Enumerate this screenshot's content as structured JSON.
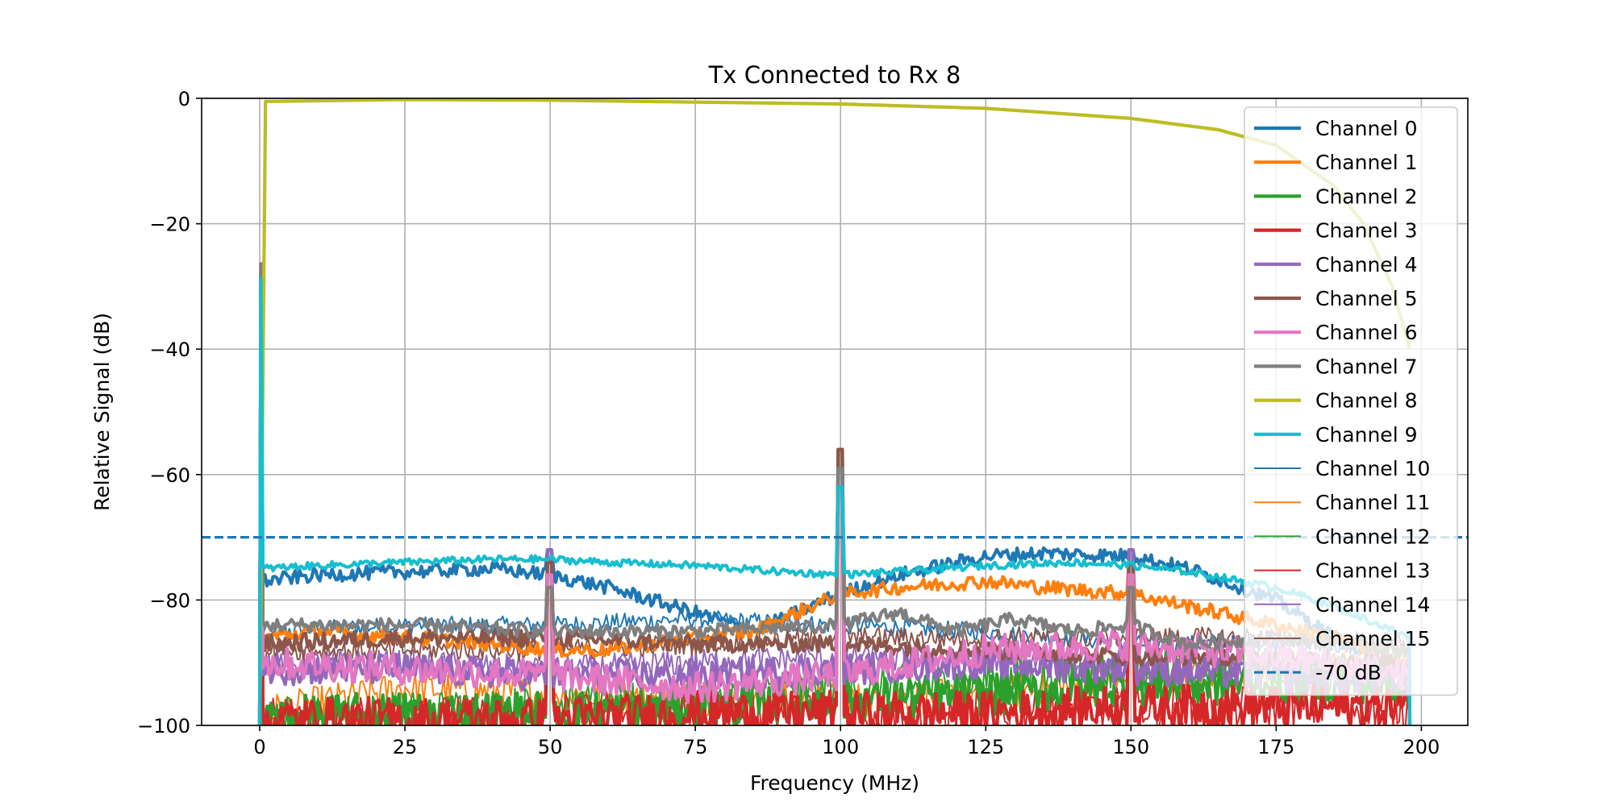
{
  "colors": {
    "grid": "#b0b0b0",
    "axis": "#000000",
    "legend_border": "#cccccc",
    "legend_bg": "#ffffff"
  },
  "chart_data": {
    "type": "line",
    "title": "Tx Connected to Rx 8",
    "xlabel": "Frequency (MHz)",
    "ylabel": "Relative Signal (dB)",
    "xlim": [
      -10,
      208
    ],
    "ylim": [
      -100,
      0
    ],
    "xticks": [
      0,
      25,
      50,
      75,
      100,
      125,
      150,
      175,
      200
    ],
    "yticks": [
      0,
      -20,
      -40,
      -60,
      -80,
      -100
    ],
    "xtick_labels": [
      "0",
      "25",
      "50",
      "75",
      "100",
      "125",
      "150",
      "175",
      "200"
    ],
    "ytick_labels": [
      "0",
      "−20",
      "−40",
      "−60",
      "−80",
      "−100"
    ],
    "grid": true,
    "legend_position": "top-right",
    "spurs_mhz": [
      0,
      50,
      100,
      150
    ],
    "series": [
      {
        "name": "Channel 0",
        "color": "#1f77b4",
        "width": "thick",
        "x": [
          0.2,
          10,
          25,
          40,
          50,
          60,
          75,
          85,
          100,
          110,
          125,
          135,
          150,
          160,
          175,
          185,
          198
        ],
        "y": [
          -77,
          -76,
          -75.5,
          -75,
          -76,
          -78,
          -82,
          -85,
          -79,
          -76,
          -73,
          -72.5,
          -73,
          -75,
          -80,
          -86,
          -92
        ],
        "noise": 0.8
      },
      {
        "name": "Channel 1",
        "color": "#ff7f0e",
        "width": "thick",
        "x": [
          0.2,
          10,
          25,
          40,
          50,
          60,
          75,
          85,
          100,
          110,
          125,
          135,
          150,
          160,
          175,
          185,
          198
        ],
        "y": [
          -86,
          -85,
          -86,
          -87,
          -88,
          -88,
          -86,
          -85,
          -79,
          -78,
          -77,
          -78,
          -79,
          -81,
          -84,
          -86,
          -90
        ],
        "noise": 0.8
      },
      {
        "name": "Channel 2",
        "color": "#2ca02c",
        "width": "thick",
        "x": [
          0.2,
          25,
          50,
          75,
          100,
          125,
          150,
          175,
          198
        ],
        "y": [
          -99,
          -98,
          -98,
          -97,
          -96,
          -95,
          -94,
          -93,
          -93
        ],
        "noise": 2.5
      },
      {
        "name": "Channel 3",
        "color": "#d62728",
        "width": "thick",
        "x": [
          0.2,
          25,
          50,
          75,
          100,
          125,
          150,
          175,
          198
        ],
        "y": [
          -99,
          -99,
          -99,
          -98,
          -98,
          -98,
          -97,
          -97,
          -97
        ],
        "noise": 2.5
      },
      {
        "name": "Channel 4",
        "color": "#9467bd",
        "width": "thick",
        "x": [
          0.2,
          25,
          50,
          75,
          100,
          125,
          150,
          175,
          198
        ],
        "y": [
          -91,
          -91,
          -92,
          -92,
          -91,
          -90,
          -91,
          -92,
          -93
        ],
        "noise": 1.8
      },
      {
        "name": "Channel 5",
        "color": "#8c564b",
        "width": "thick",
        "x": [
          0.2,
          25,
          50,
          75,
          100,
          125,
          150,
          175,
          198
        ],
        "y": [
          -87,
          -86,
          -86,
          -87,
          -87,
          -88,
          -89,
          -89,
          -90
        ],
        "noise": 1.0
      },
      {
        "name": "Channel 6",
        "color": "#e377c2",
        "width": "thick",
        "x": [
          0.2,
          25,
          50,
          75,
          100,
          125,
          150,
          175,
          198
        ],
        "y": [
          -90,
          -91,
          -92,
          -94,
          -92,
          -88,
          -87,
          -89,
          -92
        ],
        "noise": 1.8
      },
      {
        "name": "Channel 7",
        "color": "#7f7f7f",
        "width": "thick",
        "x": [
          0.2,
          25,
          50,
          75,
          100,
          110,
          120,
          130,
          140,
          150,
          160,
          175,
          198
        ],
        "y": [
          -84,
          -84,
          -85,
          -85,
          -84,
          -82,
          -85,
          -83,
          -85,
          -84,
          -87,
          -86,
          -88
        ],
        "noise": 0.8
      },
      {
        "name": "Channel 8",
        "color": "#bcbd22",
        "width": "thick",
        "x": [
          0,
          1,
          25,
          50,
          75,
          100,
          125,
          150,
          165,
          175,
          185,
          190,
          195,
          198
        ],
        "y": [
          -100,
          -0.5,
          -0.2,
          -0.3,
          -0.6,
          -0.9,
          -1.6,
          -3.2,
          -5.0,
          -7.5,
          -14,
          -20,
          -30,
          -40
        ],
        "noise": 0
      },
      {
        "name": "Channel 9",
        "color": "#17becf",
        "width": "thick",
        "x": [
          0.2,
          10,
          25,
          40,
          50,
          60,
          75,
          90,
          100,
          110,
          125,
          140,
          150,
          160,
          175,
          185,
          198
        ],
        "y": [
          -75,
          -74.5,
          -74,
          -73.5,
          -73.5,
          -74,
          -74.5,
          -75.5,
          -76,
          -75.5,
          -74.5,
          -74,
          -74.5,
          -75.5,
          -78,
          -81,
          -86
        ],
        "noise": 0.4
      },
      {
        "name": "Channel 10",
        "color": "#1f77b4",
        "width": "thin",
        "x": [
          0.2,
          25,
          50,
          75,
          100,
          125,
          150,
          175,
          198
        ],
        "y": [
          -85,
          -84,
          -84,
          -83,
          -84,
          -85,
          -87,
          -87,
          -88
        ],
        "noise": 1.0
      },
      {
        "name": "Channel 11",
        "color": "#ff7f0e",
        "width": "thin",
        "x": [
          0.2,
          25,
          50,
          75,
          100,
          125,
          150,
          175,
          198
        ],
        "y": [
          -98,
          -94,
          -95,
          -96,
          -96,
          -95,
          -93,
          -91,
          -90
        ],
        "noise": 2.0
      },
      {
        "name": "Channel 12",
        "color": "#2ca02c",
        "width": "thin",
        "x": [
          0.2,
          25,
          50,
          75,
          100,
          125,
          150,
          175,
          198
        ],
        "y": [
          -99,
          -98,
          -97,
          -96,
          -94,
          -93,
          -91,
          -91,
          -92
        ],
        "noise": 2.5
      },
      {
        "name": "Channel 13",
        "color": "#d62728",
        "width": "thin",
        "x": [
          0.2,
          25,
          50,
          75,
          100,
          125,
          150,
          175,
          198
        ],
        "y": [
          -99,
          -99,
          -98,
          -98,
          -98,
          -98,
          -97,
          -97,
          -97
        ],
        "noise": 2.5
      },
      {
        "name": "Channel 14",
        "color": "#9467bd",
        "width": "thin",
        "x": [
          0.2,
          25,
          50,
          75,
          100,
          125,
          150,
          175,
          198
        ],
        "y": [
          -90,
          -90,
          -91,
          -90,
          -89,
          -90,
          -90,
          -91,
          -92
        ],
        "noise": 1.5
      },
      {
        "name": "Channel 15",
        "color": "#8c564b",
        "width": "thin",
        "x": [
          0.2,
          25,
          50,
          75,
          100,
          125,
          150,
          175,
          198
        ],
        "y": [
          -88,
          -88,
          -88,
          -87,
          -86,
          -86,
          -86,
          -86,
          -87
        ],
        "noise": 1.2
      },
      {
        "name": "-70 dB",
        "color": "#1f77b4",
        "width": "thick",
        "dashed": true,
        "x": [
          -10,
          208
        ],
        "y": [
          -70,
          -70
        ],
        "noise": 0
      }
    ]
  }
}
